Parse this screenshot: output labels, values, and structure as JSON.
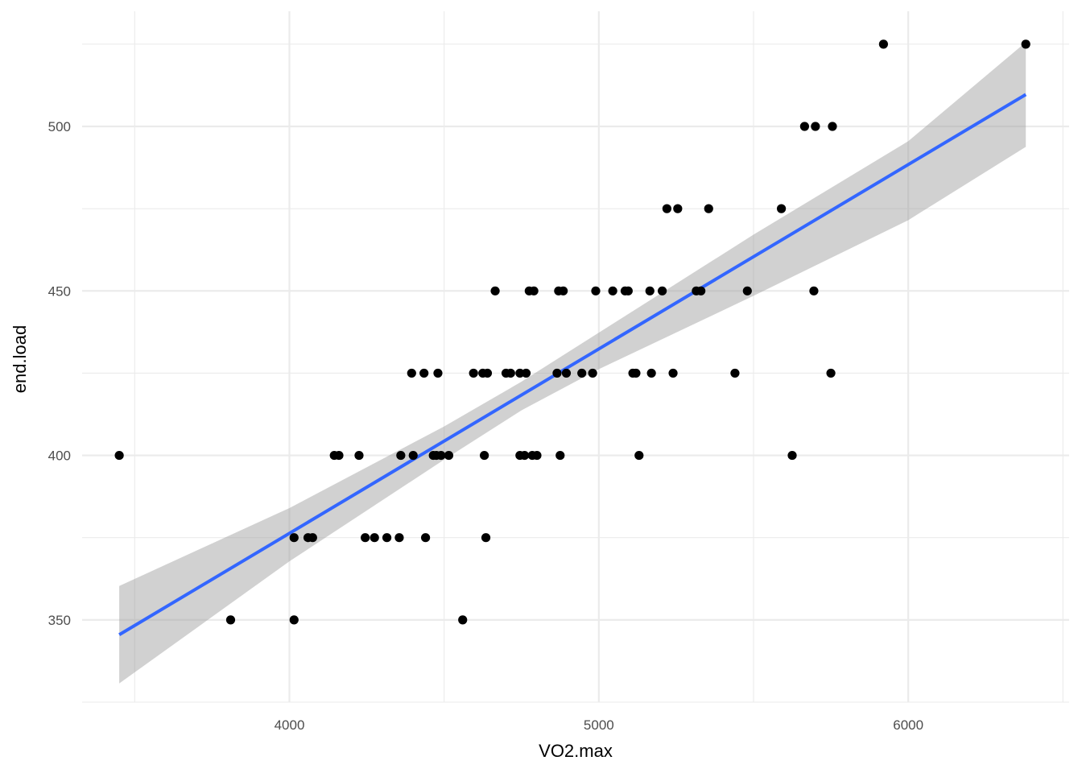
{
  "chart_data": {
    "type": "scatter",
    "title": "",
    "xlabel": "VO2.max",
    "ylabel": "end.load",
    "xlim": [
      3330,
      6520
    ],
    "ylim": [
      325,
      535
    ],
    "x_ticks": [
      4000,
      5000,
      6000
    ],
    "x_tick_labels": [
      "4000",
      "5000",
      "6000"
    ],
    "x_minor_ticks": [
      3500,
      4500,
      5500,
      6500
    ],
    "y_ticks": [
      350,
      400,
      450,
      500
    ],
    "y_tick_labels": [
      "350",
      "400",
      "450",
      "500"
    ],
    "y_minor_ticks": [
      325,
      375,
      425,
      475,
      525
    ],
    "grid": true,
    "legend": "none",
    "colors": {
      "points": "#000000",
      "fit_line": "#3366ff",
      "confidence_band": "#999999",
      "grid": "#ebebeb"
    },
    "series": [
      {
        "values": [
          [
            3450,
            400
          ],
          [
            3810,
            350
          ],
          [
            4015,
            350
          ],
          [
            4015,
            375
          ],
          [
            4060,
            375
          ],
          [
            4075,
            375
          ],
          [
            4145,
            400
          ],
          [
            4160,
            400
          ],
          [
            4225,
            400
          ],
          [
            4245,
            375
          ],
          [
            4275,
            375
          ],
          [
            4315,
            375
          ],
          [
            4355,
            375
          ],
          [
            4360,
            400
          ],
          [
            4395,
            425
          ],
          [
            4400,
            400
          ],
          [
            4435,
            425
          ],
          [
            4440,
            375
          ],
          [
            4465,
            400
          ],
          [
            4475,
            400
          ],
          [
            4480,
            425
          ],
          [
            4490,
            400
          ],
          [
            4515,
            400
          ],
          [
            4560,
            350
          ],
          [
            4595,
            425
          ],
          [
            4625,
            425
          ],
          [
            4630,
            400
          ],
          [
            4635,
            375
          ],
          [
            4640,
            425
          ],
          [
            4665,
            450
          ],
          [
            4700,
            425
          ],
          [
            4715,
            425
          ],
          [
            4745,
            425
          ],
          [
            4745,
            400
          ],
          [
            4760,
            400
          ],
          [
            4765,
            425
          ],
          [
            4775,
            450
          ],
          [
            4785,
            400
          ],
          [
            4790,
            450
          ],
          [
            4800,
            400
          ],
          [
            4865,
            425
          ],
          [
            4870,
            450
          ],
          [
            4875,
            400
          ],
          [
            4885,
            450
          ],
          [
            4895,
            425
          ],
          [
            4945,
            425
          ],
          [
            4980,
            425
          ],
          [
            4990,
            450
          ],
          [
            5045,
            450
          ],
          [
            5085,
            450
          ],
          [
            5095,
            450
          ],
          [
            5110,
            425
          ],
          [
            5120,
            425
          ],
          [
            5130,
            400
          ],
          [
            5165,
            450
          ],
          [
            5170,
            425
          ],
          [
            5205,
            450
          ],
          [
            5220,
            475
          ],
          [
            5240,
            425
          ],
          [
            5255,
            475
          ],
          [
            5315,
            450
          ],
          [
            5330,
            450
          ],
          [
            5355,
            475
          ],
          [
            5440,
            425
          ],
          [
            5480,
            450
          ],
          [
            5590,
            475
          ],
          [
            5625,
            400
          ],
          [
            5665,
            500
          ],
          [
            5695,
            450
          ],
          [
            5700,
            500
          ],
          [
            5750,
            425
          ],
          [
            5755,
            500
          ],
          [
            5920,
            525
          ],
          [
            6380,
            525
          ]
        ]
      }
    ],
    "fit_line": {
      "method": "lm",
      "x": [
        3450,
        6380
      ],
      "y": [
        345.5,
        509.7
      ]
    },
    "confidence_band": {
      "x": [
        3450,
        4000,
        4500,
        4750,
        5000,
        5500,
        6000,
        6380
      ],
      "lower": [
        330.7,
        367.8,
        398.7,
        413.7,
        426.2,
        448.5,
        471.5,
        493.8
      ],
      "upper": [
        360.3,
        384.0,
        408.8,
        422.4,
        437.3,
        467.1,
        495.5,
        525.6
      ]
    }
  }
}
